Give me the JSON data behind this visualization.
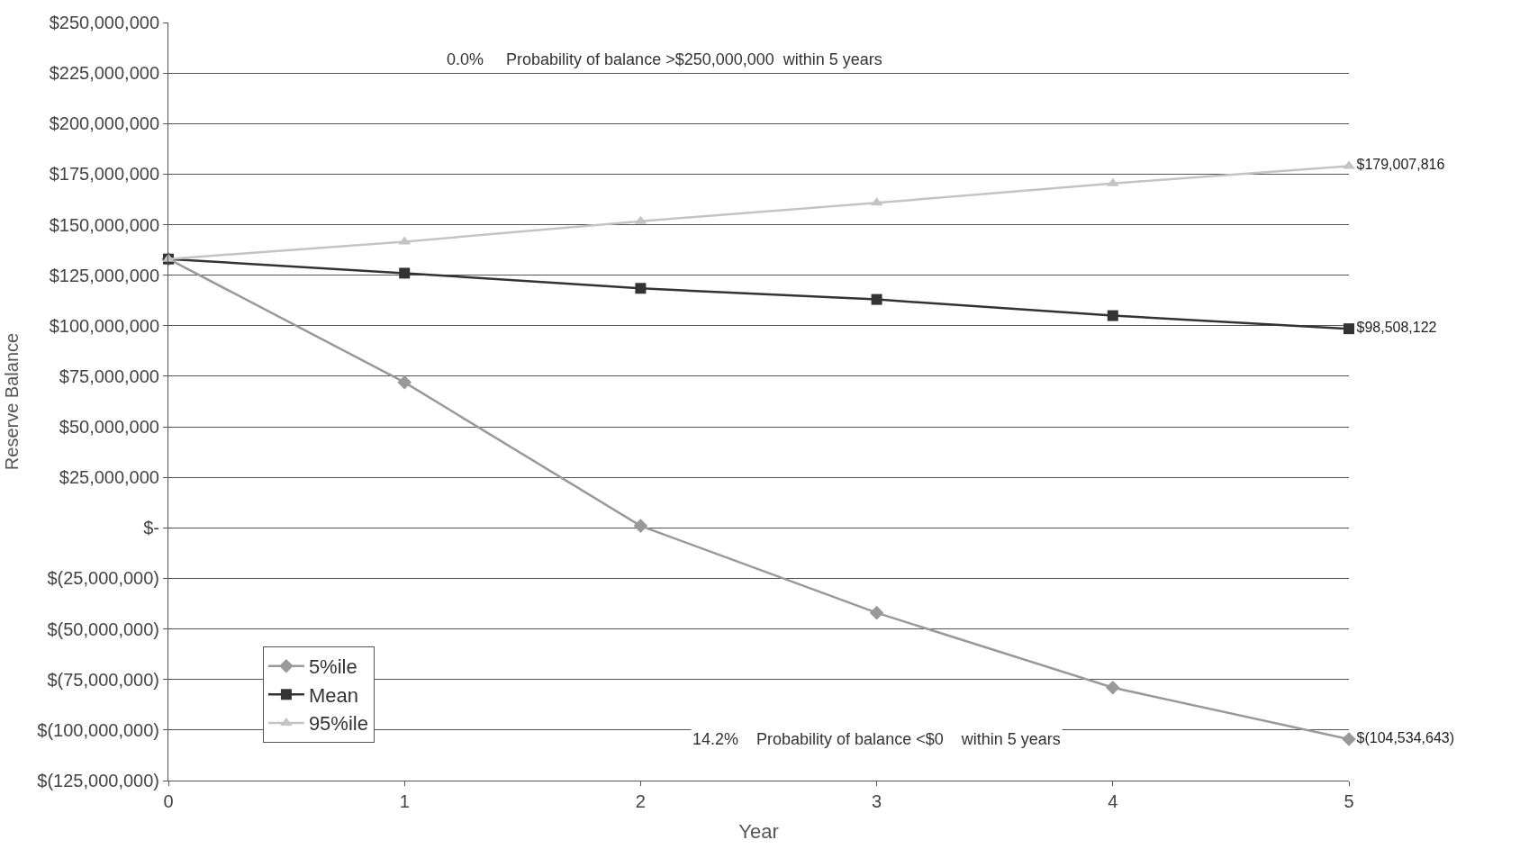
{
  "chart_data": {
    "type": "line",
    "xlabel": "Year",
    "ylabel": "Reserve Balance",
    "x": [
      0,
      1,
      2,
      3,
      4,
      5
    ],
    "series": [
      {
        "name": "5%ile",
        "color": "#999999",
        "marker": "diamond",
        "values": [
          133000000,
          72000000,
          1000000,
          -42000000,
          -79000000,
          -104534643
        ],
        "value_labels": [
          null,
          null,
          null,
          null,
          null,
          "$(104,534,643)"
        ]
      },
      {
        "name": "Mean",
        "color": "#333333",
        "marker": "square",
        "values": [
          133000000,
          126000000,
          118500000,
          113000000,
          105000000,
          98508122
        ],
        "value_labels": [
          null,
          null,
          null,
          null,
          null,
          "$98,508,122"
        ]
      },
      {
        "name": "95%ile",
        "color": "#c4c4c4",
        "marker": "triangle",
        "values": [
          133000000,
          141600000,
          151700000,
          160800000,
          170400000,
          179007816
        ],
        "value_labels": [
          null,
          null,
          null,
          null,
          null,
          "$179,007,816"
        ]
      }
    ],
    "xlim": [
      0,
      5
    ],
    "xticks": [
      0,
      1,
      2,
      3,
      4,
      5
    ],
    "ylim": [
      -125000000,
      250000000
    ],
    "yticks": [
      {
        "value": -125000000,
        "label": "$(125,000,000)"
      },
      {
        "value": -100000000,
        "label": "$(100,000,000)"
      },
      {
        "value": -75000000,
        "label": "$(75,000,000)"
      },
      {
        "value": -50000000,
        "label": "$(50,000,000)"
      },
      {
        "value": -25000000,
        "label": "$(25,000,000)"
      },
      {
        "value": 0,
        "label": "$-"
      },
      {
        "value": 25000000,
        "label": "$25,000,000"
      },
      {
        "value": 50000000,
        "label": "$50,000,000"
      },
      {
        "value": 75000000,
        "label": "$75,000,000"
      },
      {
        "value": 100000000,
        "label": "$100,000,000"
      },
      {
        "value": 125000000,
        "label": "$125,000,000"
      },
      {
        "value": 150000000,
        "label": "$150,000,000"
      },
      {
        "value": 175000000,
        "label": "$175,000,000"
      },
      {
        "value": 200000000,
        "label": "$200,000,000"
      },
      {
        "value": 225000000,
        "label": "$225,000,000"
      },
      {
        "value": 250000000,
        "label": "$250,000,000"
      }
    ],
    "annotations": [
      "0.0%     Probability of balance >$250,000,000  within 5 years",
      "14.2%    Probability of balance <$0    within 5 years"
    ],
    "grid": "y",
    "legend": "bottom left",
    "line_style": "solid"
  }
}
